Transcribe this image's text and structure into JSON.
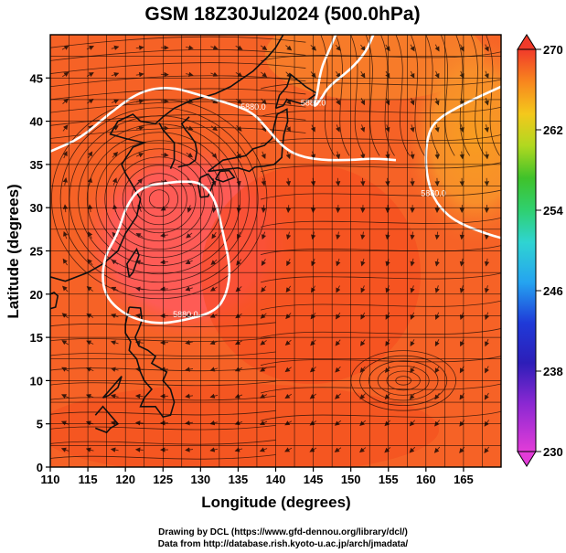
{
  "title": "GSM 18Z30Jul2024 (500.0hPa)",
  "credits": {
    "line1": "Drawing by DCL (https://www.gfd-dennou.org/library/dcl/)",
    "line2": "Data from http://database.rish.kyoto-u.ac.jp/arch/jmadata/"
  },
  "chart_data": {
    "type": "heatmap",
    "title": "GSM 18Z30Jul2024 (500.0hPa)",
    "xlabel": "Longitude (degrees)",
    "ylabel": "Latitude (degrees)",
    "xlim": [
      110,
      170
    ],
    "ylim": [
      0,
      50
    ],
    "x_ticks": [
      110,
      115,
      120,
      125,
      130,
      135,
      140,
      145,
      150,
      155,
      160,
      165
    ],
    "y_ticks": [
      0,
      5,
      10,
      15,
      20,
      25,
      30,
      35,
      40,
      45
    ],
    "grid": true,
    "colorbar": {
      "min": 230,
      "max": 270,
      "ticks": [
        230,
        238,
        246,
        254,
        262,
        270
      ],
      "placement": "right"
    },
    "contours": [
      {
        "label": "5880.0",
        "points": [
          [
            110,
            36.5
          ],
          [
            114,
            38
          ],
          [
            118,
            41
          ],
          [
            122,
            43.5
          ],
          [
            126,
            44
          ],
          [
            130,
            43
          ],
          [
            134,
            42
          ],
          [
            137,
            41
          ],
          [
            139,
            39
          ],
          [
            141,
            37
          ],
          [
            143,
            36
          ],
          [
            146,
            35.5
          ],
          [
            150,
            35.5
          ],
          [
            153,
            35.7
          ],
          [
            156,
            35.5
          ]
        ]
      },
      {
        "label": "5880.0",
        "points": [
          [
            127,
            33
          ],
          [
            122,
            32.5
          ],
          [
            120,
            30
          ],
          [
            119,
            27
          ],
          [
            117,
            24
          ],
          [
            117,
            20
          ],
          [
            120,
            17.5
          ],
          [
            124,
            16.5
          ],
          [
            128,
            17
          ],
          [
            132,
            18
          ],
          [
            133.5,
            20
          ],
          [
            134,
            23
          ],
          [
            133,
            27
          ],
          [
            132,
            31
          ],
          [
            130,
            33
          ],
          [
            127,
            33
          ]
        ]
      },
      {
        "label": "5880.0",
        "points": [
          [
            153,
            50
          ],
          [
            152,
            48
          ],
          [
            150,
            46
          ],
          [
            147,
            44
          ],
          [
            146,
            42.5
          ],
          [
            145,
            41.5
          ],
          [
            145.5,
            43
          ],
          [
            146,
            46
          ],
          [
            147,
            48
          ],
          [
            148,
            50
          ]
        ]
      },
      {
        "label": "5880.0",
        "points": [
          [
            170,
            44
          ],
          [
            165,
            42
          ],
          [
            161,
            40
          ],
          [
            160,
            37.5
          ],
          [
            160,
            34
          ],
          [
            161,
            31
          ],
          [
            163,
            29
          ],
          [
            165,
            28
          ],
          [
            168,
            27
          ],
          [
            170,
            26.5
          ]
        ]
      }
    ],
    "fields": [
      {
        "name": "center-low",
        "lon": 124.5,
        "lat": 31,
        "value": 266.5
      },
      {
        "name": "ne-warm",
        "lon": 165,
        "lat": 45,
        "value": 262
      }
    ]
  }
}
